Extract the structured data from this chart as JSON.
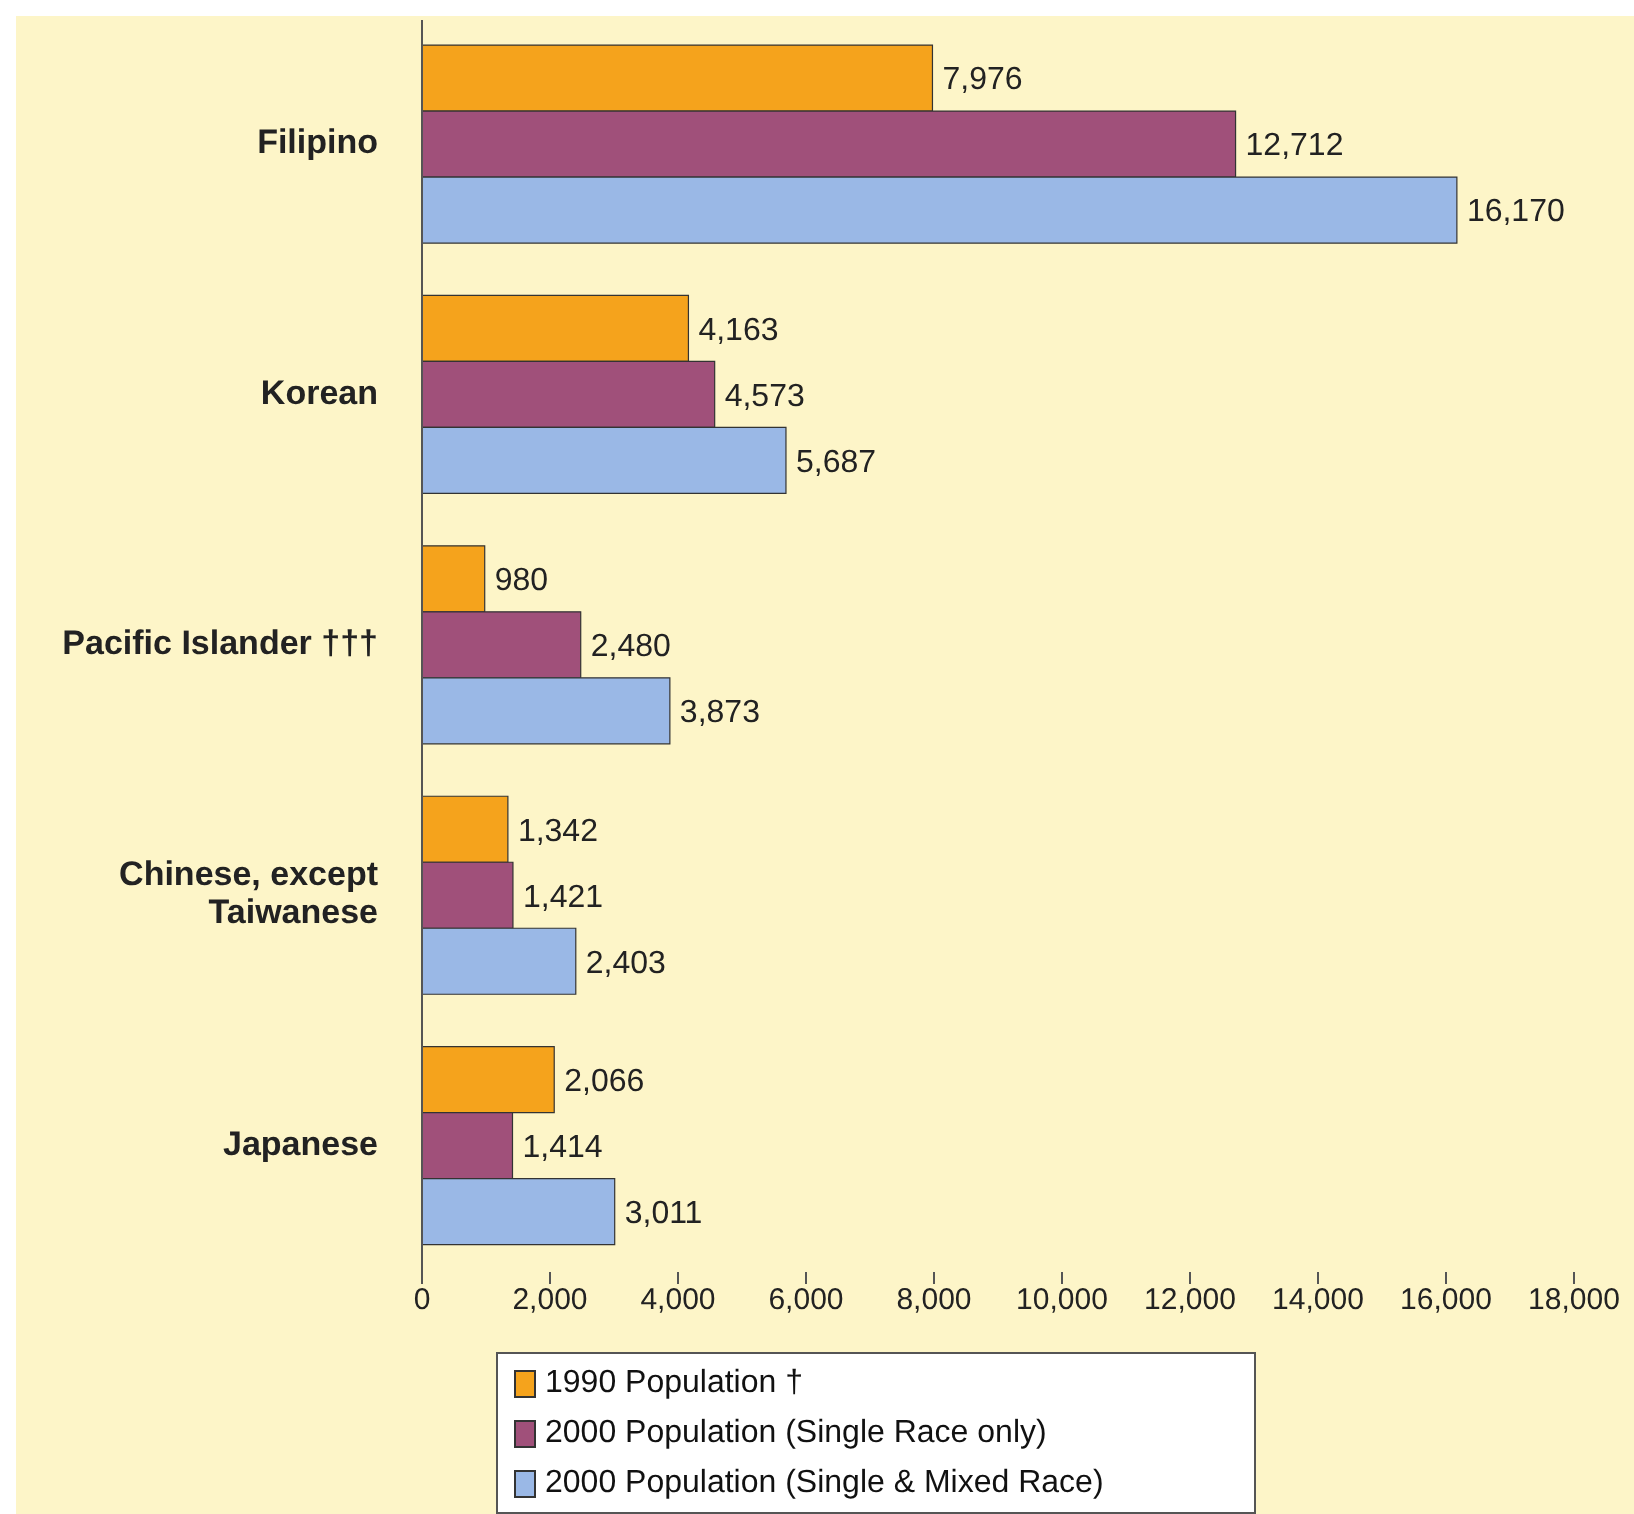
{
  "chart_data": {
    "type": "bar",
    "orientation": "horizontal",
    "categories": [
      "Filipino",
      "Korean",
      "Pacific Islander †††",
      "Chinese, except Taiwanese",
      "Japanese"
    ],
    "series": [
      {
        "name": "1990 Population †",
        "color": "#f5a31c",
        "values": [
          7976,
          4163,
          980,
          1342,
          2066
        ],
        "value_labels": [
          "7,976",
          "4,163",
          "980",
          "1,342",
          "2,066"
        ]
      },
      {
        "name": "2000 Population (Single Race only)",
        "color": "#a0507a",
        "values": [
          12712,
          4573,
          2480,
          1421,
          1414
        ],
        "value_labels": [
          "12,712",
          "4,573",
          "2,480",
          "1,421",
          "1,414"
        ]
      },
      {
        "name": "2000 Population (Single & Mixed Race)",
        "color": "#9ab8e6",
        "values": [
          16170,
          5687,
          3873,
          2403,
          3011
        ],
        "value_labels": [
          "16,170",
          "5,687",
          "3,873",
          "2,403",
          "3,011"
        ]
      }
    ],
    "xlim": [
      0,
      18000
    ],
    "xticks": [
      {
        "value": 0,
        "label": "0"
      },
      {
        "value": 2000,
        "label": "2,000"
      },
      {
        "value": 4000,
        "label": "4,000"
      },
      {
        "value": 6000,
        "label": "6,000"
      },
      {
        "value": 8000,
        "label": "8,000"
      },
      {
        "value": 10000,
        "label": "10,000"
      },
      {
        "value": 12000,
        "label": "12,000"
      },
      {
        "value": 14000,
        "label": "14,000"
      },
      {
        "value": 16000,
        "label": "16,000"
      },
      {
        "value": 18000,
        "label": "18,000"
      }
    ],
    "grid": false,
    "legend": "bottom"
  }
}
